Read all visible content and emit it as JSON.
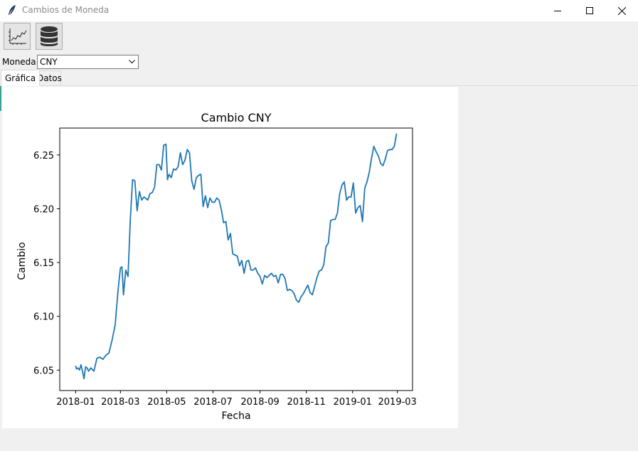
{
  "window": {
    "title": "Cambios de Moneda",
    "accent_color": "#3aa39a"
  },
  "toolbar": {
    "buttons": [
      {
        "icon": "line-chart-icon",
        "tooltip": ""
      },
      {
        "icon": "database-icon",
        "tooltip": ""
      }
    ]
  },
  "currency": {
    "label": "Moneda:",
    "selected": "CNY"
  },
  "tabs": [
    {
      "label": "Gráfica",
      "active": true
    },
    {
      "label": "Datos",
      "active": false
    }
  ],
  "chart_data": {
    "type": "line",
    "title": "Cambio CNY",
    "xlabel": "Fecha",
    "ylabel": "Cambio",
    "xlim": [
      "2017-12-11",
      "2019-03-21"
    ],
    "ylim": [
      6.031,
      6.275
    ],
    "xticks": [
      "2018-01",
      "2018-03",
      "2018-05",
      "2018-07",
      "2018-09",
      "2018-11",
      "2019-01",
      "2019-03"
    ],
    "yticks": [
      6.05,
      6.1,
      6.15,
      6.2,
      6.25
    ],
    "line_color": "#1f77b4",
    "grid": false,
    "series": [
      {
        "name": "",
        "x": [
          "2018-01-01",
          "2018-01-02",
          "2018-01-04",
          "2018-01-06",
          "2018-01-08",
          "2018-01-10",
          "2018-01-12",
          "2018-01-14",
          "2018-01-16",
          "2018-01-18",
          "2018-01-21",
          "2018-01-25",
          "2018-01-29",
          "2018-02-02",
          "2018-02-06",
          "2018-02-10",
          "2018-02-14",
          "2018-02-18",
          "2018-02-22",
          "2018-02-26",
          "2018-03-01",
          "2018-03-03",
          "2018-03-05",
          "2018-03-08",
          "2018-03-11",
          "2018-03-14",
          "2018-03-17",
          "2018-03-20",
          "2018-03-23",
          "2018-03-26",
          "2018-03-29",
          "2018-04-01",
          "2018-04-03",
          "2018-04-06",
          "2018-04-09",
          "2018-04-12",
          "2018-04-15",
          "2018-04-18",
          "2018-04-21",
          "2018-04-24",
          "2018-04-27",
          "2018-04-30",
          "2018-05-02",
          "2018-05-04",
          "2018-05-07",
          "2018-05-10",
          "2018-05-13",
          "2018-05-16",
          "2018-05-19",
          "2018-05-22",
          "2018-05-25",
          "2018-05-28",
          "2018-05-31",
          "2018-06-03",
          "2018-06-06",
          "2018-06-09",
          "2018-06-12",
          "2018-06-15",
          "2018-06-18",
          "2018-06-21",
          "2018-06-24",
          "2018-06-27",
          "2018-06-30",
          "2018-07-03",
          "2018-07-06",
          "2018-07-09",
          "2018-07-12",
          "2018-07-15",
          "2018-07-18",
          "2018-07-21",
          "2018-07-24",
          "2018-07-27",
          "2018-07-30",
          "2018-08-02",
          "2018-08-05",
          "2018-08-08",
          "2018-08-11",
          "2018-08-14",
          "2018-08-17",
          "2018-08-20",
          "2018-08-23",
          "2018-08-26",
          "2018-08-29",
          "2018-09-01",
          "2018-09-04",
          "2018-09-07",
          "2018-09-10",
          "2018-09-13",
          "2018-09-16",
          "2018-09-19",
          "2018-09-22",
          "2018-09-25",
          "2018-09-28",
          "2018-10-01",
          "2018-10-04",
          "2018-10-07",
          "2018-10-10",
          "2018-10-13",
          "2018-10-16",
          "2018-10-19",
          "2018-10-22",
          "2018-10-25",
          "2018-10-28",
          "2018-10-31",
          "2018-11-03",
          "2018-11-06",
          "2018-11-09",
          "2018-11-12",
          "2018-11-15",
          "2018-11-18",
          "2018-11-21",
          "2018-11-24",
          "2018-11-27",
          "2018-11-30",
          "2018-12-03",
          "2018-12-06",
          "2018-12-09",
          "2018-12-12",
          "2018-12-15",
          "2018-12-18",
          "2018-12-21",
          "2018-12-24",
          "2018-12-27",
          "2018-12-30",
          "2019-01-02",
          "2019-01-05",
          "2019-01-08",
          "2019-01-11",
          "2019-01-14",
          "2019-01-17",
          "2019-01-20",
          "2019-01-23",
          "2019-01-26",
          "2019-01-29",
          "2019-02-01",
          "2019-02-04",
          "2019-02-07",
          "2019-02-10",
          "2019-02-13",
          "2019-02-16",
          "2019-02-19",
          "2019-02-22",
          "2019-02-25",
          "2019-02-28"
        ],
        "y": [
          6.054,
          6.051,
          6.052,
          6.05,
          6.055,
          6.049,
          6.042,
          6.053,
          6.052,
          6.049,
          6.052,
          6.049,
          6.061,
          6.062,
          6.06,
          6.064,
          6.066,
          6.078,
          6.092,
          6.125,
          6.145,
          6.146,
          6.12,
          6.143,
          6.137,
          6.19,
          6.227,
          6.226,
          6.198,
          6.216,
          6.208,
          6.211,
          6.21,
          6.208,
          6.214,
          6.215,
          6.22,
          6.241,
          6.241,
          6.236,
          6.259,
          6.26,
          6.227,
          6.232,
          6.229,
          6.237,
          6.236,
          6.239,
          6.252,
          6.241,
          6.245,
          6.255,
          6.252,
          6.226,
          6.218,
          6.229,
          6.231,
          6.232,
          6.202,
          6.212,
          6.201,
          6.21,
          6.206,
          6.206,
          6.21,
          6.208,
          6.199,
          6.187,
          6.188,
          6.171,
          6.177,
          6.158,
          6.157,
          6.156,
          6.147,
          6.152,
          6.14,
          6.151,
          6.152,
          6.143,
          6.143,
          6.145,
          6.14,
          6.137,
          6.13,
          6.138,
          6.136,
          6.138,
          6.14,
          6.137,
          6.138,
          6.131,
          6.139,
          6.139,
          6.135,
          6.124,
          6.125,
          6.124,
          6.121,
          6.115,
          6.113,
          6.118,
          6.121,
          6.125,
          6.129,
          6.122,
          6.12,
          6.128,
          6.136,
          6.142,
          6.143,
          6.148,
          6.165,
          6.168,
          6.189,
          6.19,
          6.19,
          6.196,
          6.214,
          6.222,
          6.225,
          6.208,
          6.211,
          6.211,
          6.224,
          6.196,
          6.201,
          6.203,
          6.188,
          6.219,
          6.225,
          6.234,
          6.247,
          6.258,
          6.253,
          6.249,
          6.242,
          6.24,
          6.246,
          6.254,
          6.255,
          6.255,
          6.258,
          6.27
        ]
      }
    ]
  }
}
